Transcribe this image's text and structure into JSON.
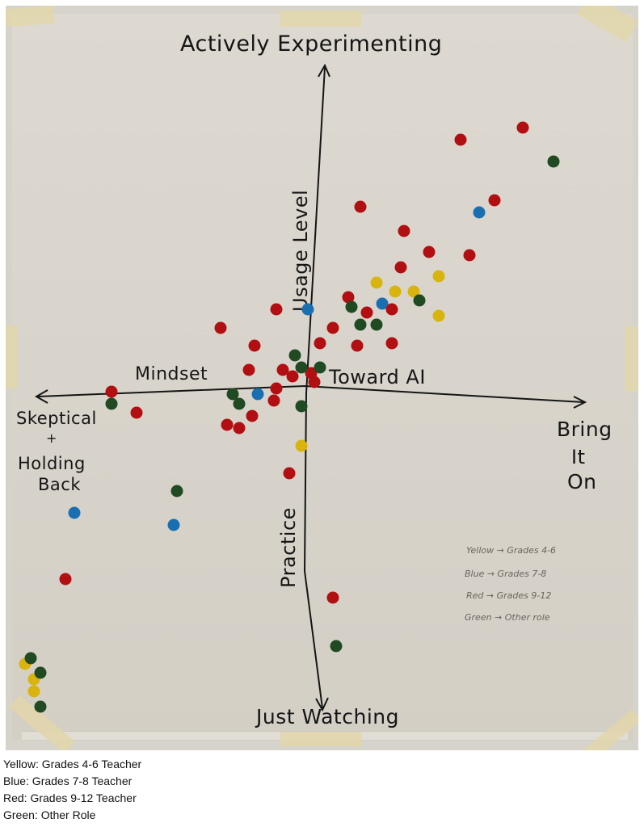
{
  "chart_data": {
    "type": "scatter",
    "title": "",
    "xlabel": "Mindset Toward AI",
    "ylabel": "Usage Level / Practice",
    "x_axis": {
      "left_end_label": "Skeptical + Holding Back",
      "right_end_label": "Bring It On",
      "mid_label_left": "Mindset",
      "mid_label_right": "Toward AI"
    },
    "y_axis": {
      "top_end_label": "Actively Experimenting",
      "bottom_end_label": "Just Watching",
      "mid_label_top": "Usage Level",
      "mid_label_bottom": "Practice"
    },
    "xlim": [
      -10,
      10
    ],
    "ylim": [
      -10,
      10
    ],
    "grid": false,
    "legend_position": "bottom-left caption + handwritten note lower-right",
    "series": [
      {
        "name": "Yellow: Grades 4-6 Teacher",
        "color": "#d9b40e",
        "points": [
          [
            2.3,
            3.4
          ],
          [
            2.9,
            3.1
          ],
          [
            3.5,
            3.1
          ],
          [
            4.3,
            3.6
          ],
          [
            4.3,
            2.3
          ],
          [
            -0.1,
            -2.0
          ],
          [
            -9.0,
            -9.2
          ],
          [
            -8.7,
            -9.7
          ],
          [
            -8.7,
            -10.1
          ]
        ]
      },
      {
        "name": "Blue: Grades 7-8 Teacher",
        "color": "#1a6fb0",
        "points": [
          [
            0.1,
            2.5
          ],
          [
            2.5,
            2.7
          ],
          [
            5.6,
            5.7
          ],
          [
            -1.5,
            -0.3
          ],
          [
            -7.4,
            -4.2
          ],
          [
            -4.2,
            -4.6
          ]
        ]
      },
      {
        "name": "Red: Grades 9-12 Teacher",
        "color": "#b10f12",
        "points": [
          [
            1.8,
            5.9
          ],
          [
            3.2,
            5.1
          ],
          [
            4.0,
            4.4
          ],
          [
            5.3,
            4.3
          ],
          [
            5.0,
            8.1
          ],
          [
            7.0,
            8.5
          ],
          [
            6.1,
            6.1
          ],
          [
            3.1,
            3.9
          ],
          [
            1.4,
            2.9
          ],
          [
            2.0,
            2.4
          ],
          [
            2.8,
            2.5
          ],
          [
            0.9,
            1.9
          ],
          [
            0.5,
            1.4
          ],
          [
            1.7,
            1.3
          ],
          [
            2.8,
            1.4
          ],
          [
            -2.7,
            1.9
          ],
          [
            -1.6,
            1.3
          ],
          [
            -0.9,
            2.5
          ],
          [
            0.2,
            0.4
          ],
          [
            -1.8,
            0.5
          ],
          [
            -0.7,
            0.5
          ],
          [
            -0.4,
            0.3
          ],
          [
            0.3,
            0.1
          ],
          [
            -0.9,
            -0.1
          ],
          [
            -1.0,
            -0.5
          ],
          [
            -1.7,
            -1.0
          ],
          [
            -2.1,
            -1.4
          ],
          [
            -2.5,
            -1.3
          ],
          [
            -0.5,
            -2.9
          ],
          [
            -6.2,
            -0.2
          ],
          [
            -5.4,
            -0.9
          ],
          [
            -7.7,
            -6.4
          ],
          [
            0.9,
            -7.0
          ]
        ]
      },
      {
        "name": "Green: Other Role",
        "color": "#1f4a22",
        "points": [
          [
            8.0,
            7.4
          ],
          [
            3.7,
            2.8
          ],
          [
            1.5,
            2.6
          ],
          [
            1.8,
            2.0
          ],
          [
            2.3,
            2.0
          ],
          [
            -0.3,
            1.0
          ],
          [
            -0.1,
            0.6
          ],
          [
            0.5,
            0.6
          ],
          [
            -2.3,
            -0.3
          ],
          [
            -2.1,
            -0.6
          ],
          [
            -0.1,
            -0.7
          ],
          [
            -6.2,
            -0.6
          ],
          [
            -4.1,
            -3.5
          ],
          [
            1.0,
            -8.6
          ],
          [
            -8.8,
            -9.0
          ],
          [
            -8.5,
            -9.5
          ],
          [
            -8.5,
            -10.6
          ]
        ]
      }
    ]
  },
  "board": {
    "top_label": "Actively Experimenting",
    "bottom_label": "Just Watching",
    "left_label_line1": "Skeptical",
    "left_label_line2": "+",
    "left_label_line3": "Holding",
    "left_label_line4": "Back",
    "right_label_line1": "Bring",
    "right_label_line2": "It",
    "right_label_line3": "On",
    "mindset_label": "Mindset",
    "toward_ai_label": "Toward AI",
    "usage_label": "Usage Level",
    "practice_label": "Practice",
    "handwritten_key": [
      "Yellow → Grades 4-6",
      "Blue → Grades 7-8",
      "Red → Grades 9-12",
      "Green → Other role"
    ]
  },
  "caption": {
    "lines": [
      "Yellow: Grades 4-6 Teacher",
      "Blue: Grades 7-8 Teacher",
      "Red: Grades 9-12 Teacher",
      "Green: Other Role"
    ]
  }
}
